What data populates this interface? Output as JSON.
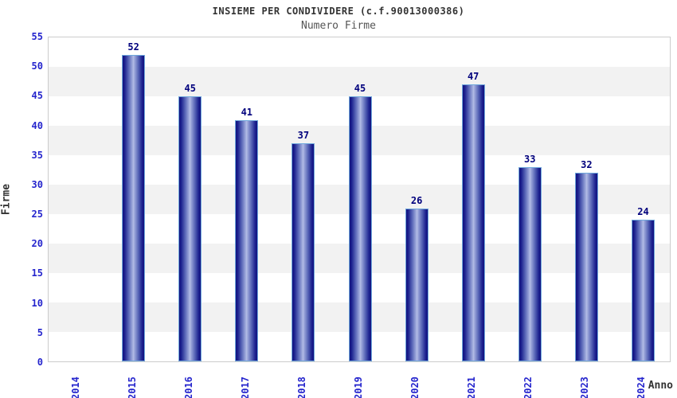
{
  "chart_data": {
    "type": "bar",
    "title": "INSIEME PER CONDIVIDERE (c.f.90013000386)",
    "subtitle": "Numero Firme",
    "xlabel": "Anno",
    "ylabel": "Firme",
    "categories": [
      "2014",
      "2015",
      "2016",
      "2017",
      "2018",
      "2019",
      "2020",
      "2021",
      "2022",
      "2023",
      "2024"
    ],
    "values": [
      0,
      52,
      45,
      41,
      37,
      45,
      26,
      47,
      33,
      32,
      24
    ],
    "ylim": [
      0,
      55
    ],
    "ytick_step": 5,
    "yticks": [
      0,
      5,
      10,
      15,
      20,
      25,
      30,
      35,
      40,
      45,
      50,
      55
    ],
    "grid": "alternating-horizontal-bands",
    "legend_position": "none",
    "value_labels_shown": true,
    "colors": {
      "bar_edge": "#12127e",
      "bar_center": "#b4bde6",
      "bar_border": "#6fa8dc",
      "tick_label": "#2525cd",
      "value_label": "#00007d",
      "band_gray": "#f2f2f2",
      "band_white": "#ffffff",
      "plot_border": "#cccccc",
      "title_color": "#333333",
      "subtitle_color": "#555555"
    }
  }
}
